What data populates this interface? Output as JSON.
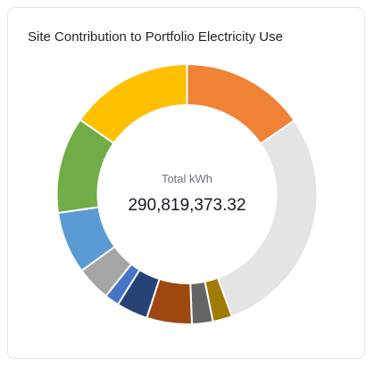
{
  "card": {
    "title": "Site Contribution to Portfolio Electricity Use"
  },
  "chart_data": {
    "type": "pie",
    "style": "donut",
    "title": "Site Contribution to Portfolio Electricity Use",
    "center_label": "Total kWh",
    "center_value": "290,819,373.32",
    "legend": "none",
    "slices": [
      {
        "color": "#ef8234",
        "percent": 15.4
      },
      {
        "color": "#e4e4e4",
        "percent": 29.0
      },
      {
        "color": "#a07b00",
        "percent": 2.4
      },
      {
        "color": "#646464",
        "percent": 2.6
      },
      {
        "color": "#9e4711",
        "percent": 5.6
      },
      {
        "color": "#264277",
        "percent": 3.9
      },
      {
        "color": "#4775c7",
        "percent": 1.8
      },
      {
        "color": "#a5a5a5",
        "percent": 4.3
      },
      {
        "color": "#5b9bd5",
        "percent": 7.7
      },
      {
        "color": "#71ad47",
        "percent": 12.0
      },
      {
        "color": "#ffc000",
        "percent": 15.3
      }
    ]
  }
}
